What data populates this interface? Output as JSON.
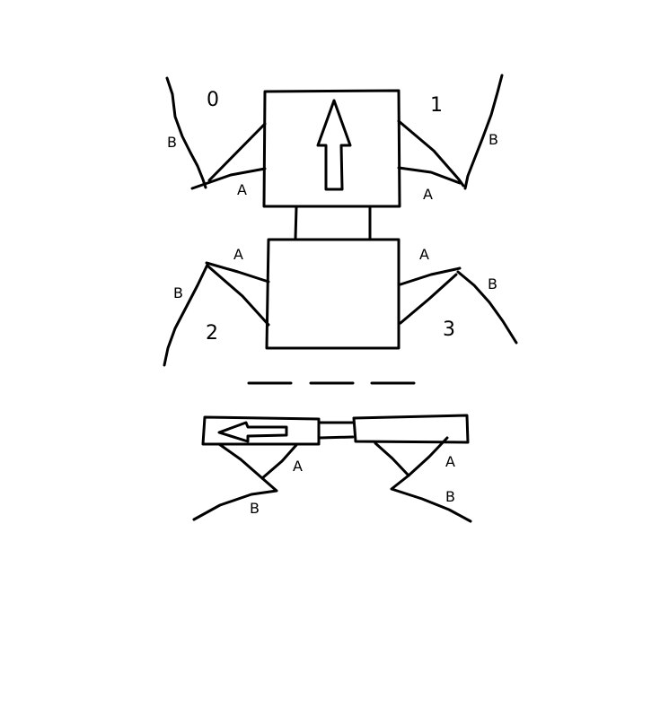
{
  "colors": {
    "background": "#ffffff",
    "ink": "#000000"
  },
  "top_view": {
    "upper_body": {
      "arrow_icon": "up-arrow",
      "legs": [
        {
          "number": "0",
          "segment_a": "A",
          "segment_b": "B"
        },
        {
          "number": "1",
          "segment_a": "A",
          "segment_b": "B"
        }
      ]
    },
    "lower_body": {
      "legs": [
        {
          "number": "2",
          "segment_a": "A",
          "segment_b": "B"
        },
        {
          "number": "3",
          "segment_a": "A",
          "segment_b": "B"
        }
      ]
    }
  },
  "side_view": {
    "arrow_icon": "left-arrow",
    "legs": [
      {
        "segment_a": "A",
        "segment_b": "B"
      },
      {
        "segment_a": "A",
        "segment_b": "B"
      }
    ]
  }
}
